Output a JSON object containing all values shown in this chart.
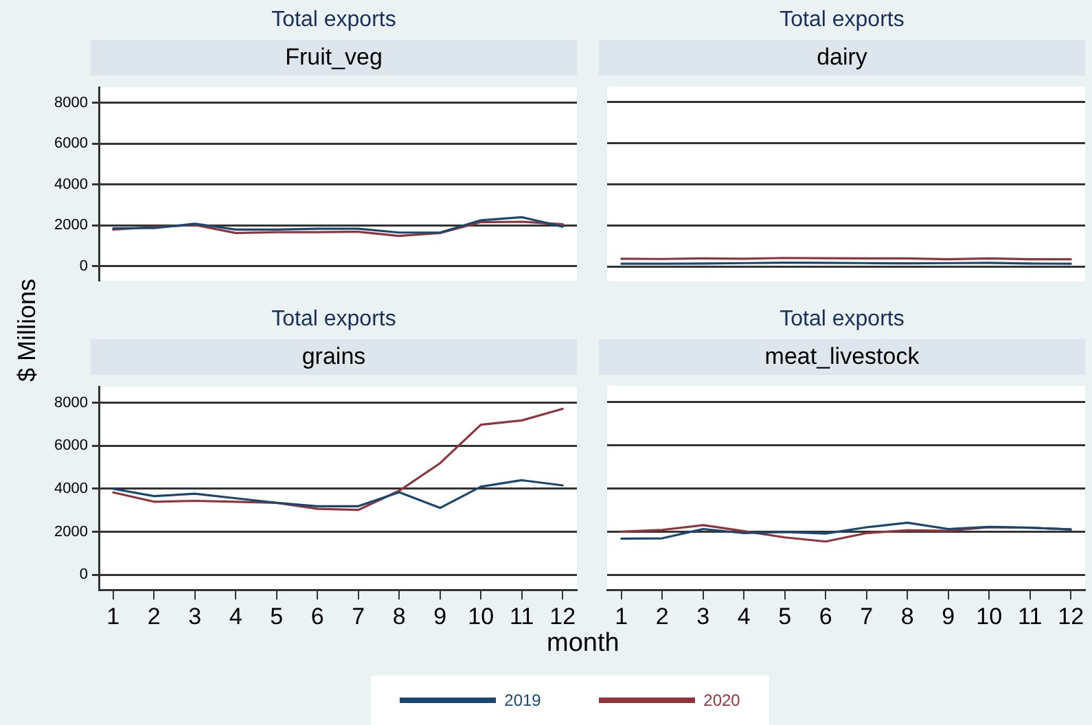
{
  "chart_data": [
    {
      "type": "line",
      "title": "Total exports",
      "subtitle": "Fruit_veg",
      "ylabel": "$ Millions",
      "x": [
        1,
        2,
        3,
        4,
        5,
        6,
        7,
        8,
        9,
        10,
        11,
        12
      ],
      "xlim": [
        0.65,
        12.35
      ],
      "xticks": [
        1,
        2,
        3,
        4,
        5,
        6,
        7,
        8,
        9,
        10,
        11,
        12
      ],
      "ylim": [
        -700,
        8750
      ],
      "yticks": [
        0,
        2000,
        4000,
        6000,
        8000
      ],
      "grid": "y",
      "tick_labels": "y",
      "marker": "none",
      "line_style": "solid",
      "series": [
        {
          "color": "#1a476f",
          "values": [
            1860,
            1870,
            2080,
            1800,
            1800,
            1840,
            1840,
            1650,
            1650,
            2250,
            2400,
            1940
          ]
        },
        {
          "color": "#90353b",
          "values": [
            1800,
            1920,
            2020,
            1630,
            1670,
            1670,
            1690,
            1490,
            1630,
            2160,
            2180,
            2060
          ]
        }
      ]
    },
    {
      "type": "line",
      "title": "Total exports",
      "subtitle": "dairy",
      "x": [
        1,
        2,
        3,
        4,
        5,
        6,
        7,
        8,
        9,
        10,
        11,
        12
      ],
      "xlim": [
        0.65,
        12.35
      ],
      "xticks": [
        1,
        2,
        3,
        4,
        5,
        6,
        7,
        8,
        9,
        10,
        11,
        12
      ],
      "ylim": [
        -700,
        8750
      ],
      "yticks": [
        0,
        2000,
        4000,
        6000,
        8000
      ],
      "grid": "y",
      "tick_labels": false,
      "marker": "none",
      "line_style": "solid",
      "series": [
        {
          "color": "#1a476f",
          "values": [
            160,
            160,
            170,
            190,
            210,
            200,
            190,
            180,
            190,
            200,
            170,
            160
          ]
        },
        {
          "color": "#90353b",
          "values": [
            400,
            390,
            420,
            400,
            440,
            430,
            420,
            420,
            380,
            420,
            380,
            380
          ]
        }
      ]
    },
    {
      "type": "line",
      "title": "Total exports",
      "subtitle": "grains",
      "xlabel": "month",
      "x": [
        1,
        2,
        3,
        4,
        5,
        6,
        7,
        8,
        9,
        10,
        11,
        12
      ],
      "xlim": [
        0.65,
        12.35
      ],
      "xticks": [
        1,
        2,
        3,
        4,
        5,
        6,
        7,
        8,
        9,
        10,
        11,
        12
      ],
      "ylim": [
        -700,
        8750
      ],
      "yticks": [
        0,
        2000,
        4000,
        6000,
        8000
      ],
      "grid": "y",
      "legend": "bottom",
      "marker": "none",
      "line_style": "solid",
      "series": [
        {
          "name": "2019",
          "color": "#1a476f",
          "values": [
            4000,
            3660,
            3770,
            3560,
            3350,
            3190,
            3190,
            3840,
            3110,
            4100,
            4400,
            4160
          ]
        },
        {
          "name": "2020",
          "color": "#90353b",
          "values": [
            3830,
            3400,
            3440,
            3400,
            3350,
            3070,
            3020,
            3910,
            5190,
            6980,
            7180,
            7720
          ]
        }
      ]
    },
    {
      "type": "line",
      "title": "Total exports",
      "subtitle": "meat_livestock",
      "x": [
        1,
        2,
        3,
        4,
        5,
        6,
        7,
        8,
        9,
        10,
        11,
        12
      ],
      "xlim": [
        0.65,
        12.35
      ],
      "xticks": [
        1,
        2,
        3,
        4,
        5,
        6,
        7,
        8,
        9,
        10,
        11,
        12
      ],
      "ylim": [
        -700,
        8750
      ],
      "yticks": [
        0,
        2000,
        4000,
        6000,
        8000
      ],
      "grid": "y",
      "tick_labels": "x",
      "marker": "none",
      "line_style": "solid",
      "series": [
        {
          "color": "#1a476f",
          "values": [
            1670,
            1690,
            2120,
            1930,
            1980,
            1910,
            2200,
            2410,
            2120,
            2220,
            2180,
            2100
          ]
        },
        {
          "color": "#90353b",
          "values": [
            2000,
            2080,
            2300,
            2020,
            1730,
            1540,
            1930,
            2060,
            2040,
            2200,
            2180,
            2100
          ]
        }
      ]
    }
  ]
}
